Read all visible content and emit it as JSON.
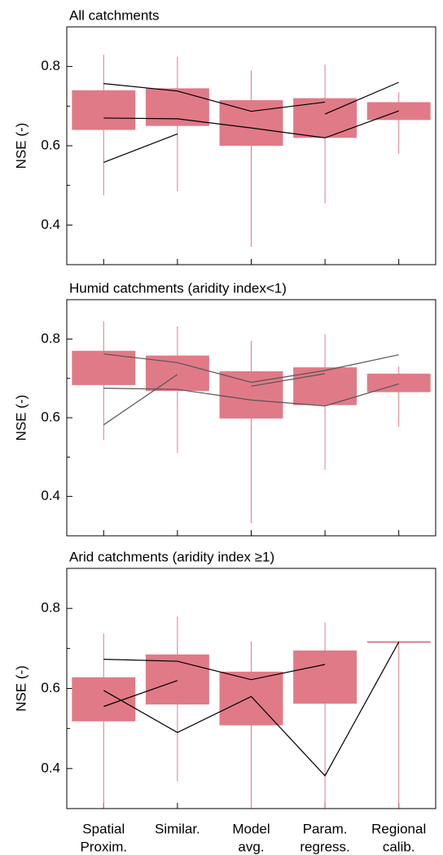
{
  "chart_data": [
    {
      "type": "box",
      "title": "All catchments",
      "ylabel": "NSE (-)",
      "categories": [
        null,
        null,
        null,
        null,
        null
      ],
      "ylim": [
        0.3,
        0.9
      ],
      "yticks": [
        0.4,
        0.6,
        0.8
      ],
      "yminorticks": [
        0.5,
        0.7
      ],
      "box_color": "#e07a87",
      "line_color": "#000000",
      "whislo": [
        0.475,
        0.485,
        0.345,
        0.455,
        0.58
      ],
      "q1": [
        0.64,
        0.65,
        0.6,
        0.62,
        0.665
      ],
      "q3": [
        0.74,
        0.745,
        0.715,
        0.72,
        0.71
      ],
      "whishi": [
        0.83,
        0.825,
        0.79,
        0.805,
        0.735
      ],
      "lines": [
        {
          "values": [
            0.757,
            0.738,
            0.687,
            0.71,
            null
          ]
        },
        {
          "values": [
            null,
            null,
            null,
            0.68,
            0.76
          ]
        },
        {
          "values": [
            0.67,
            0.668,
            0.645,
            0.62,
            0.688
          ]
        },
        {
          "values": [
            0.558,
            0.63,
            null,
            null,
            null
          ]
        }
      ]
    },
    {
      "type": "box",
      "title": "Humid catchments (aridity index<1)",
      "ylabel": "NSE (-)",
      "categories": [
        null,
        null,
        null,
        null,
        null
      ],
      "ylim": [
        0.3,
        0.9
      ],
      "yticks": [
        0.4,
        0.6,
        0.8
      ],
      "yminorticks": [
        0.5,
        0.7
      ],
      "box_color": "#e07a87",
      "line_color": "#555555",
      "whislo": [
        0.543,
        0.51,
        0.332,
        0.468,
        0.577
      ],
      "q1": [
        0.683,
        0.668,
        0.598,
        0.632,
        0.665
      ],
      "q3": [
        0.77,
        0.758,
        0.718,
        0.728,
        0.712
      ],
      "whishi": [
        0.845,
        0.832,
        0.795,
        0.812,
        0.73
      ],
      "lines": [
        {
          "values": [
            0.762,
            0.74,
            0.69,
            0.72,
            0.76
          ]
        },
        {
          "values": [
            0.675,
            0.672,
            0.645,
            0.63,
            0.686
          ]
        },
        {
          "values": [
            0.582,
            0.71,
            null,
            null,
            null
          ]
        },
        {
          "values": [
            null,
            null,
            0.68,
            0.712,
            null
          ]
        }
      ]
    },
    {
      "type": "box",
      "title": "Arid catchments (aridity index ≥1)",
      "ylabel": "NSE (-)",
      "categories": [
        [
          "Spatial",
          "Proxim."
        ],
        [
          "Similar.",
          ""
        ],
        [
          "Model",
          "avg."
        ],
        [
          "Param.",
          "regress."
        ],
        [
          "Regional",
          "calib."
        ]
      ],
      "ylim": [
        0.3,
        0.9
      ],
      "yticks": [
        0.4,
        0.6,
        0.8
      ],
      "yminorticks": [
        0.5,
        0.7
      ],
      "box_color": "#e07a87",
      "line_color": "#000000",
      "whislo": [
        0.3,
        0.368,
        0.3,
        0.3,
        0.3
      ],
      "q1": [
        0.518,
        0.56,
        0.508,
        0.562,
        0.716
      ],
      "q3": [
        0.628,
        0.685,
        0.642,
        0.695,
        0.716
      ],
      "whishi": [
        0.737,
        0.78,
        0.718,
        0.765,
        0.716
      ],
      "lines": [
        {
          "values": [
            0.673,
            0.668,
            0.622,
            0.66,
            null
          ]
        },
        {
          "values": [
            0.595,
            0.49,
            0.58,
            0.382,
            0.716
          ]
        },
        {
          "values": [
            0.555,
            0.62,
            null,
            null,
            null
          ]
        }
      ]
    }
  ]
}
